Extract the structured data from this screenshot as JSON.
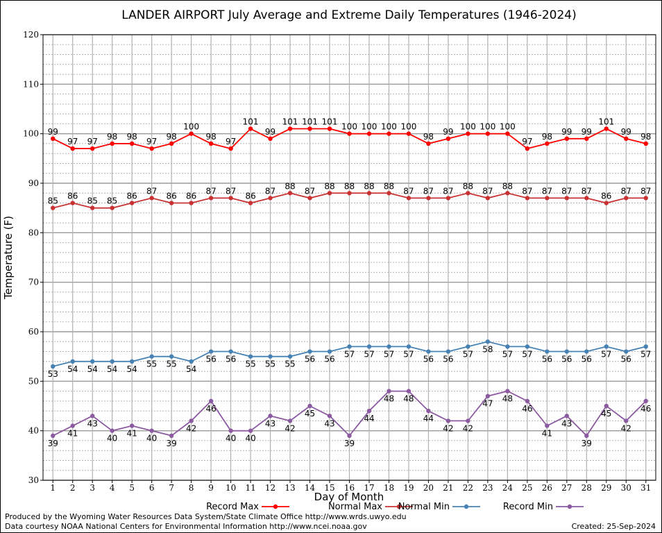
{
  "chart_data": {
    "type": "line",
    "title": "LANDER AIRPORT July Average and Extreme Daily Temperatures (1946-2024)",
    "xlabel": "Day of Month",
    "ylabel": "Temperature (F)",
    "x": [
      1,
      2,
      3,
      4,
      5,
      6,
      7,
      8,
      9,
      10,
      11,
      12,
      13,
      14,
      15,
      16,
      17,
      18,
      19,
      20,
      21,
      22,
      23,
      24,
      25,
      26,
      27,
      28,
      29,
      30,
      31
    ],
    "xlim": [
      0.5,
      31.5
    ],
    "ylim": [
      30,
      120
    ],
    "yticks": [
      30,
      40,
      50,
      60,
      70,
      80,
      90,
      100,
      110,
      120
    ],
    "grid": true,
    "legend_position": "bottom",
    "series": [
      {
        "name": "Record Max",
        "color": "#ff0000",
        "label_position": "above",
        "values": [
          99,
          97,
          97,
          98,
          98,
          97,
          98,
          100,
          98,
          97,
          101,
          99,
          101,
          101,
          101,
          100,
          100,
          100,
          100,
          98,
          99,
          100,
          100,
          100,
          97,
          98,
          99,
          99,
          101,
          99,
          98
        ]
      },
      {
        "name": "Normal Max",
        "color": "#c83232",
        "label_position": "above",
        "values": [
          85,
          86,
          85,
          85,
          86,
          87,
          86,
          86,
          87,
          87,
          86,
          87,
          88,
          87,
          88,
          88,
          88,
          88,
          87,
          87,
          87,
          88,
          87,
          88,
          87,
          87,
          87,
          87,
          86,
          87,
          87
        ]
      },
      {
        "name": "Normal Min",
        "color": "#4682b4",
        "label_position": "below",
        "values": [
          53,
          54,
          54,
          54,
          54,
          55,
          55,
          54,
          56,
          56,
          55,
          55,
          55,
          56,
          56,
          57,
          57,
          57,
          57,
          56,
          56,
          57,
          58,
          57,
          57,
          56,
          56,
          56,
          57,
          56,
          57
        ]
      },
      {
        "name": "Record Min",
        "color": "#8c5aa0",
        "label_position": "below",
        "values": [
          39,
          41,
          43,
          40,
          41,
          40,
          39,
          42,
          46,
          40,
          40,
          43,
          42,
          45,
          43,
          39,
          44,
          48,
          48,
          44,
          42,
          42,
          47,
          48,
          46,
          41,
          43,
          39,
          45,
          42,
          46
        ]
      }
    ]
  },
  "footer": {
    "produced_by": "Produced by the Wyoming Water Resources Data System/State Climate Office http://www.wrds.uwyo.edu",
    "courtesy": "Data courtesy NOAA National Centers for Environmental Information http://www.ncei.noaa.gov",
    "created": "Created: 25-Sep-2024"
  }
}
